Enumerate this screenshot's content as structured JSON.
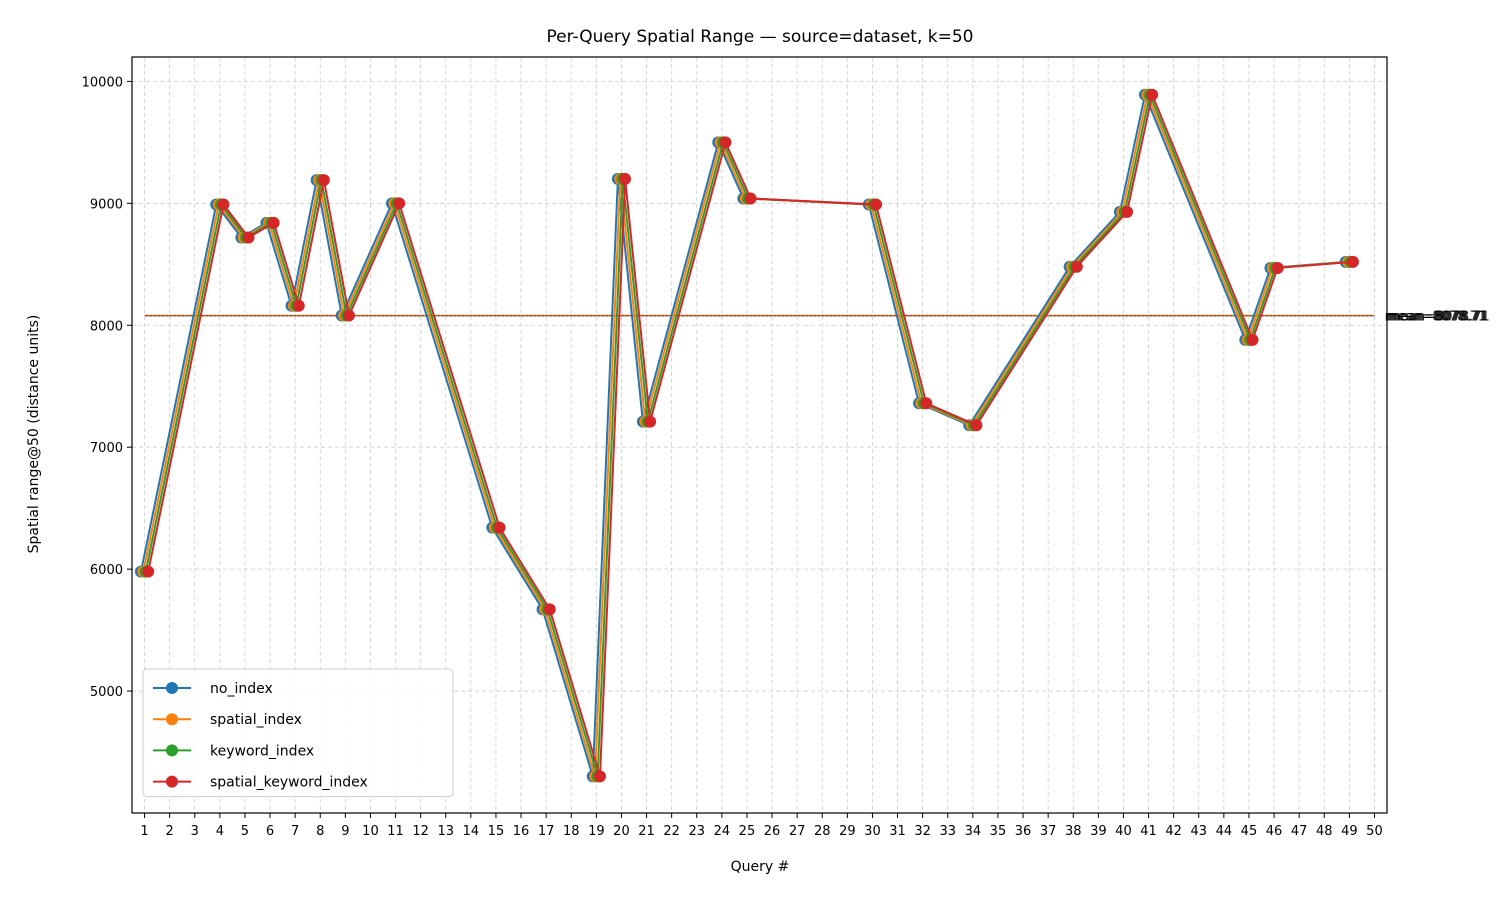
{
  "chart_data": {
    "type": "line",
    "title": "Per-Query Spatial Range — source=dataset, k=50",
    "xlabel": "Query #",
    "ylabel": "Spatial range@50 (distance units)",
    "x_ticks": [
      1,
      2,
      3,
      4,
      5,
      6,
      7,
      8,
      9,
      10,
      11,
      12,
      13,
      14,
      15,
      16,
      17,
      18,
      19,
      20,
      21,
      22,
      23,
      24,
      25,
      26,
      27,
      28,
      29,
      30,
      31,
      32,
      33,
      34,
      35,
      36,
      37,
      38,
      39,
      40,
      41,
      42,
      43,
      44,
      45,
      46,
      47,
      48,
      49,
      50
    ],
    "xlim": [
      0.5,
      50.5
    ],
    "ylim": [
      4000,
      10200
    ],
    "y_ticks": [
      5000,
      6000,
      7000,
      8000,
      9000,
      10000
    ],
    "grid": true,
    "legend_position": "lower-left",
    "x": [
      1,
      4,
      5,
      6,
      7,
      8,
      9,
      11,
      15,
      17,
      19,
      20,
      21,
      24,
      25,
      30,
      32,
      34,
      38,
      40,
      41,
      45,
      46,
      49
    ],
    "series": [
      {
        "name": "no_index",
        "color": "#1f77b4",
        "values": [
          5980,
          8990,
          8720,
          8840,
          8160,
          9190,
          8080,
          9000,
          6340,
          5670,
          4300,
          9200,
          7210,
          9500,
          9040,
          8990,
          7360,
          7180,
          8480,
          8930,
          9890,
          7880,
          8470,
          8520
        ],
        "mean": 8078.71,
        "mean_label": "mean=8078.71"
      },
      {
        "name": "spatial_index",
        "color": "#ff7f0e",
        "values": [
          5980,
          8990,
          8720,
          8840,
          8160,
          9190,
          8080,
          9000,
          6340,
          5670,
          4300,
          9200,
          7210,
          9500,
          9040,
          8990,
          7360,
          7180,
          8480,
          8930,
          9890,
          7880,
          8470,
          8520
        ],
        "mean": 8078.71,
        "mean_label": "mean=8078.71"
      },
      {
        "name": "keyword_index",
        "color": "#2ca02c",
        "values": [
          5980,
          8990,
          8720,
          8840,
          8160,
          9190,
          8080,
          9000,
          6340,
          5670,
          4300,
          9200,
          7210,
          9500,
          9040,
          8990,
          7360,
          7180,
          8480,
          8930,
          9890,
          7880,
          8470,
          8520
        ],
        "mean": 8078.71,
        "mean_label": "mean=8078.71"
      },
      {
        "name": "spatial_keyword_index",
        "color": "#d62728",
        "values": [
          5980,
          8990,
          8720,
          8840,
          8160,
          9190,
          8080,
          9000,
          6340,
          5670,
          4300,
          9200,
          7210,
          9500,
          9040,
          8990,
          7360,
          7180,
          8480,
          8930,
          9890,
          7880,
          8470,
          8520
        ],
        "mean": 8078.71,
        "mean_label": "mean=8078.71"
      }
    ]
  }
}
